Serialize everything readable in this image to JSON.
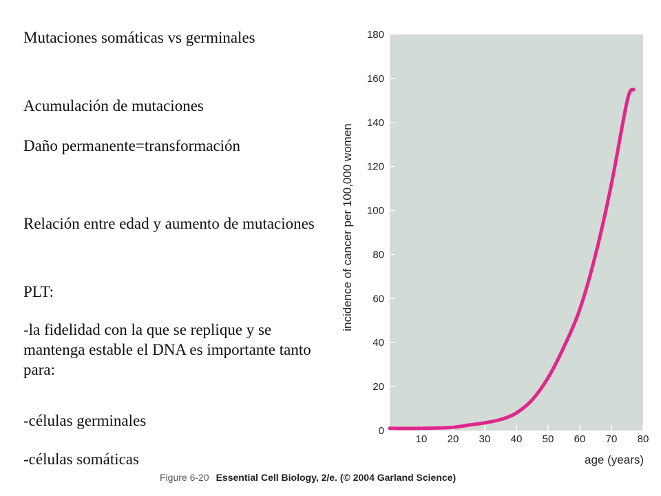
{
  "slide": {
    "paragraphs": [
      "Mutaciones somáticas vs germinales",
      "Acumulación  de mutaciones",
      "Daño permanente=transformación",
      "Relación entre edad y aumento de mutaciones",
      "PLT:",
      "-la fidelidad con la que se replique y se mantenga estable el DNA es importante tanto para:",
      "-células germinales",
      "-células somáticas"
    ]
  },
  "caption": {
    "figure": "Figure 6-20",
    "source": "Essential Cell Biology, 2/e. (© 2004 Garland Science)"
  },
  "chart_data": {
    "type": "line",
    "title": "",
    "xlabel": "age (years)",
    "ylabel": "incidence of cancer per 100,000 women",
    "xlim": [
      0,
      80
    ],
    "ylim": [
      0,
      180
    ],
    "xticks": [
      10,
      20,
      30,
      40,
      50,
      60,
      70,
      80
    ],
    "yticks": [
      0,
      20,
      40,
      60,
      80,
      100,
      120,
      140,
      160,
      180
    ],
    "grid": false,
    "background_color": "#d3dbd7",
    "series": [
      {
        "color": "#e0278a",
        "x": [
          0,
          10,
          20,
          25,
          30,
          35,
          40,
          45,
          50,
          55,
          60,
          65,
          70,
          75,
          77
        ],
        "y": [
          1,
          1,
          1.5,
          2.5,
          3.5,
          5,
          8,
          14,
          24,
          38,
          55,
          80,
          112,
          150,
          155
        ]
      }
    ]
  }
}
